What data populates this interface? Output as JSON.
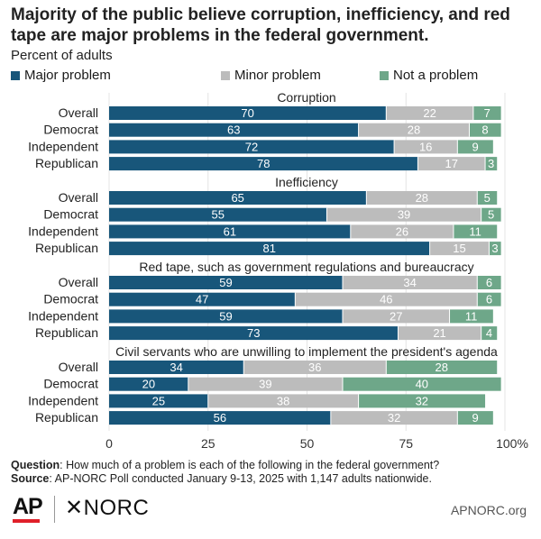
{
  "chart_data": {
    "type": "stacked-horizontal-bar",
    "title": "Majority of the public believe corruption, inefficiency, and red tape are major problems in the federal government.",
    "subtitle": "Percent of adults",
    "legend": [
      {
        "name": "Major problem",
        "color": "#18567a"
      },
      {
        "name": "Minor problem",
        "color": "#bcbcbc"
      },
      {
        "name": "Not a problem",
        "color": "#6ea789"
      }
    ],
    "xlim": [
      0,
      100
    ],
    "xticks": [
      "0",
      "25",
      "50",
      "75",
      "100%"
    ],
    "xtick_values": [
      0,
      25,
      50,
      75,
      100
    ],
    "groups": [
      {
        "title": "Corruption",
        "rows": [
          {
            "label": "Overall",
            "values": [
              70,
              22,
              7
            ]
          },
          {
            "label": "Democrat",
            "values": [
              63,
              28,
              8
            ]
          },
          {
            "label": "Independent",
            "values": [
              72,
              16,
              9
            ]
          },
          {
            "label": "Republican",
            "values": [
              78,
              17,
              3
            ]
          }
        ]
      },
      {
        "title": "Inefficiency",
        "rows": [
          {
            "label": "Overall",
            "values": [
              65,
              28,
              5
            ]
          },
          {
            "label": "Democrat",
            "values": [
              55,
              39,
              5
            ]
          },
          {
            "label": "Independent",
            "values": [
              61,
              26,
              11
            ]
          },
          {
            "label": "Republican",
            "values": [
              81,
              15,
              3
            ]
          }
        ]
      },
      {
        "title": "Red tape, such as government regulations and bureaucracy",
        "rows": [
          {
            "label": "Overall",
            "values": [
              59,
              34,
              6
            ]
          },
          {
            "label": "Democrat",
            "values": [
              47,
              46,
              6
            ]
          },
          {
            "label": "Independent",
            "values": [
              59,
              27,
              11
            ]
          },
          {
            "label": "Republican",
            "values": [
              73,
              21,
              4
            ]
          }
        ]
      },
      {
        "title": "Civil servants who are unwilling to implement the president's agenda",
        "rows": [
          {
            "label": "Overall",
            "values": [
              34,
              36,
              28
            ]
          },
          {
            "label": "Democrat",
            "values": [
              20,
              39,
              40
            ]
          },
          {
            "label": "Independent",
            "values": [
              25,
              38,
              32
            ]
          },
          {
            "label": "Republican",
            "values": [
              56,
              32,
              9
            ]
          }
        ]
      }
    ]
  },
  "footer": {
    "question_label": "Question",
    "question_text": ": How much of a problem is each of the following in the federal government?",
    "source_label": "Source",
    "source_text": ": AP-NORC Poll conducted January 9-13, 2025 with 1,147 adults nationwide."
  },
  "branding": {
    "ap_logo": "AP",
    "norc_logo": "✕NORC",
    "site": "APNORC.org"
  }
}
